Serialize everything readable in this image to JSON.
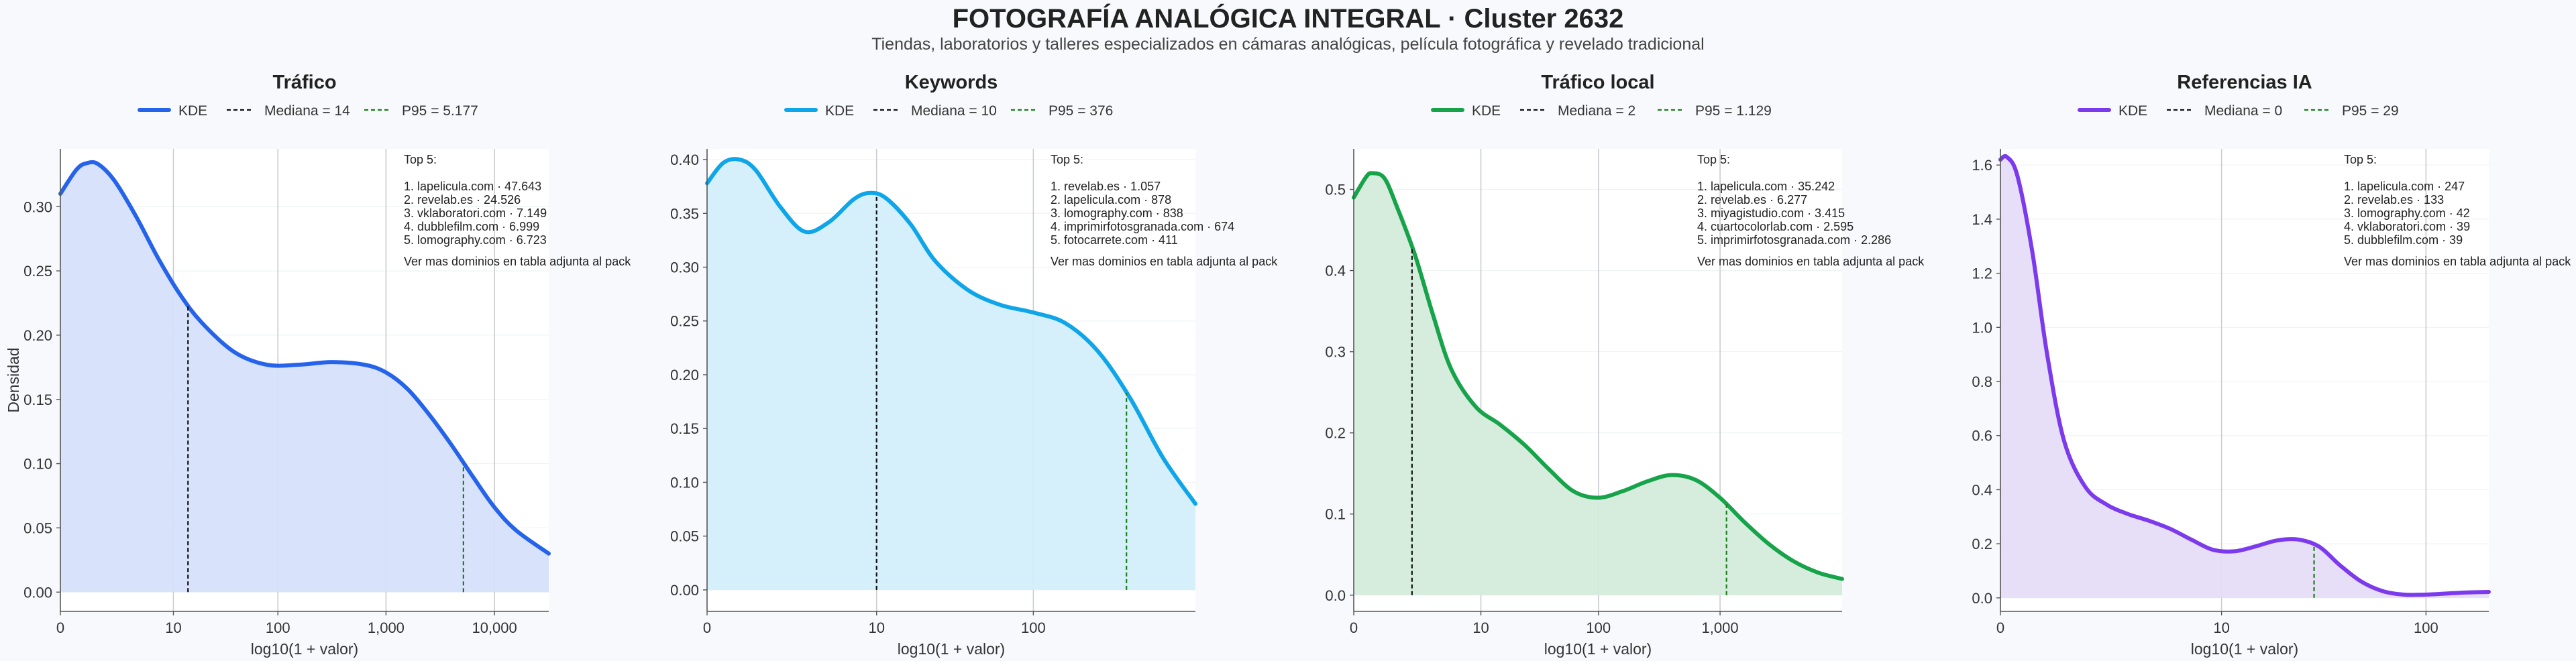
{
  "title": "FOTOGRAFÍA ANALÓGICA INTEGRAL · Cluster 2632",
  "subtitle": "Tiendas, laboratorios y talleres especializados en cámaras analógicas, película fotográfica y revelado tradicional",
  "chart_data": [
    {
      "type": "area",
      "title": "Tráfico",
      "xlabel": "log10(1 + valor)",
      "ylabel": "Densidad",
      "color": "#2563eb",
      "fill": "#d6e0fa",
      "xscale": "log10(1+x)",
      "xlim": [
        0,
        4.5
      ],
      "ylim": [
        -0.015,
        0.345
      ],
      "xticks": [
        "0",
        "10",
        "100",
        "1,000",
        "10,000"
      ],
      "yticks": [
        "0.00",
        "0.05",
        "0.10",
        "0.15",
        "0.20",
        "0.25",
        "0.30"
      ],
      "ytick_values": [
        0,
        0.05,
        0.1,
        0.15,
        0.2,
        0.25,
        0.3
      ],
      "legend": [
        "KDE",
        "Mediana = 14",
        "P95 = 5.177"
      ],
      "median": 14,
      "p95": 5177,
      "kde": {
        "x": [
          0,
          0.15,
          0.25,
          0.35,
          0.5,
          0.7,
          0.9,
          1.1,
          1.3,
          1.6,
          1.9,
          2.2,
          2.5,
          2.8,
          3.0,
          3.2,
          3.4,
          3.6,
          3.8,
          4.0,
          4.2,
          4.5
        ],
        "y": [
          0.31,
          0.329,
          0.334,
          0.333,
          0.32,
          0.292,
          0.26,
          0.232,
          0.21,
          0.187,
          0.177,
          0.177,
          0.179,
          0.177,
          0.171,
          0.158,
          0.138,
          0.115,
          0.09,
          0.066,
          0.048,
          0.03
        ]
      },
      "annotation": {
        "heading": "Top 5:",
        "items": [
          "1. lapelicula.com · 47.643",
          "2. revelab.es · 24.526",
          "3. vklaboratori.com · 7.149",
          "4. dubblefilm.com · 6.999",
          "5. lomography.com · 6.723"
        ],
        "footer": "Ver mas dominios en tabla adjunta al pack"
      }
    },
    {
      "type": "area",
      "title": "Keywords",
      "xlabel": "log10(1 + valor)",
      "ylabel": "",
      "color": "#0ea5e9",
      "fill": "#d3eefb",
      "xscale": "log10(1+x)",
      "xlim": [
        0,
        3.0
      ],
      "ylim": [
        -0.02,
        0.41
      ],
      "xticks": [
        "0",
        "10",
        "100"
      ],
      "yticks": [
        "0.00",
        "0.05",
        "0.10",
        "0.15",
        "0.20",
        "0.25",
        "0.30",
        "0.35",
        "0.40"
      ],
      "ytick_values": [
        0,
        0.05,
        0.1,
        0.15,
        0.2,
        0.25,
        0.3,
        0.35,
        0.4
      ],
      "legend": [
        "KDE",
        "Mediana = 10",
        "P95 = 376"
      ],
      "median": 10,
      "p95": 376,
      "kde": {
        "x": [
          0,
          0.1,
          0.2,
          0.3,
          0.45,
          0.6,
          0.75,
          0.9,
          1.0,
          1.1,
          1.25,
          1.4,
          1.6,
          1.8,
          2.0,
          2.2,
          2.4,
          2.6,
          2.8,
          3.0
        ],
        "y": [
          0.378,
          0.397,
          0.4,
          0.39,
          0.356,
          0.333,
          0.342,
          0.363,
          0.369,
          0.364,
          0.34,
          0.306,
          0.279,
          0.265,
          0.258,
          0.248,
          0.222,
          0.178,
          0.123,
          0.08
        ]
      },
      "annotation": {
        "heading": "Top 5:",
        "items": [
          "1. revelab.es · 1.057",
          "2. lapelicula.com · 878",
          "3. lomography.com · 838",
          "4. imprimirfotosgranada.com · 674",
          "5. fotocarrete.com · 411"
        ],
        "footer": "Ver mas dominios en tabla adjunta al pack"
      }
    },
    {
      "type": "area",
      "title": "Tráfico local",
      "xlabel": "log10(1 + valor)",
      "ylabel": "",
      "color": "#16a34a",
      "fill": "#d4ecdc",
      "xscale": "log10(1+x)",
      "xlim": [
        0,
        4.0
      ],
      "ylim": [
        -0.02,
        0.55
      ],
      "xticks": [
        "0",
        "10",
        "100",
        "1,000",
        "10,000"
      ],
      "yticks": [
        "0.0",
        "0.1",
        "0.2",
        "0.3",
        "0.4",
        "0.5"
      ],
      "ytick_values": [
        0,
        0.1,
        0.2,
        0.3,
        0.4,
        0.5
      ],
      "legend": [
        "KDE",
        "Mediana = 2",
        "P95 = 1.129"
      ],
      "median": 2,
      "p95": 1129,
      "kde": {
        "x": [
          0,
          0.1,
          0.15,
          0.25,
          0.35,
          0.5,
          0.65,
          0.8,
          1.0,
          1.2,
          1.4,
          1.6,
          1.8,
          2.0,
          2.2,
          2.4,
          2.6,
          2.8,
          3.0,
          3.2,
          3.4,
          3.6,
          3.8,
          4.0
        ],
        "y": [
          0.49,
          0.515,
          0.52,
          0.514,
          0.48,
          0.42,
          0.345,
          0.278,
          0.232,
          0.21,
          0.185,
          0.155,
          0.128,
          0.12,
          0.128,
          0.14,
          0.148,
          0.142,
          0.12,
          0.09,
          0.063,
          0.042,
          0.028,
          0.02
        ]
      },
      "annotation": {
        "heading": "Top 5:",
        "items": [
          "1. lapelicula.com · 35.242",
          "2. revelab.es · 6.277",
          "3. miyagistudio.com · 3.415",
          "4. cuartocolorlab.com · 2.595",
          "5. imprimirfotosgranada.com · 2.286"
        ],
        "footer": "Ver mas dominios en tabla adjunta al pack"
      }
    },
    {
      "type": "area",
      "title": "Referencias IA",
      "xlabel": "log10(1 + valor)",
      "ylabel": "",
      "color": "#7c3aed",
      "fill": "#e6dcf7",
      "xscale": "log10(1+x)",
      "xlim": [
        0,
        2.3
      ],
      "ylim": [
        -0.05,
        1.66
      ],
      "xticks": [
        "0",
        "10",
        "100"
      ],
      "yticks": [
        "0.0",
        "0.2",
        "0.4",
        "0.6",
        "0.8",
        "1.0",
        "1.2",
        "1.4",
        "1.6"
      ],
      "ytick_values": [
        0,
        0.2,
        0.4,
        0.6,
        0.8,
        1.0,
        1.2,
        1.4,
        1.6
      ],
      "legend": [
        "KDE",
        "Mediana = 0",
        "P95 = 29"
      ],
      "median": 0,
      "p95": 29,
      "kde": {
        "x": [
          0,
          0.03,
          0.08,
          0.15,
          0.22,
          0.3,
          0.4,
          0.5,
          0.6,
          0.7,
          0.8,
          0.9,
          1.0,
          1.1,
          1.2,
          1.3,
          1.4,
          1.5,
          1.6,
          1.7,
          1.8,
          1.9,
          2.0,
          2.1,
          2.2,
          2.3
        ],
        "y": [
          1.62,
          1.63,
          1.56,
          1.28,
          0.9,
          0.58,
          0.41,
          0.345,
          0.31,
          0.285,
          0.255,
          0.215,
          0.178,
          0.172,
          0.19,
          0.212,
          0.216,
          0.19,
          0.12,
          0.06,
          0.025,
          0.012,
          0.012,
          0.016,
          0.02,
          0.022
        ]
      },
      "annotation": {
        "heading": "Top 5:",
        "items": [
          "1. lapelicula.com · 247",
          "2. revelab.es · 133",
          "3. lomography.com · 42",
          "4. vklaboratori.com · 39",
          "5. dubblefilm.com · 39"
        ],
        "footer": "Ver mas dominios en tabla adjunta al pack"
      }
    }
  ]
}
